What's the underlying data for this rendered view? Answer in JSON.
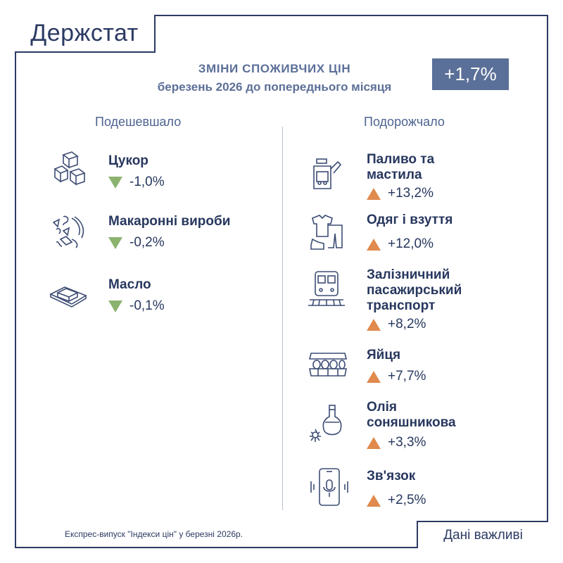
{
  "header": {
    "logo": "Держстат",
    "title": "ЗМІНИ СПОЖИВЧИХ ЦІН",
    "subtitle": "березень 2026 до попереднього місяця",
    "total_change": "+1,7%"
  },
  "cheaper": {
    "heading": "Подешевшало",
    "items": [
      {
        "name": "Цукор",
        "change": "-1,0%",
        "icon": "sugar-cubes-icon"
      },
      {
        "name": "Макаронні вироби",
        "change": "-0,2%",
        "icon": "pasta-icon"
      },
      {
        "name": "Масло",
        "change": "-0,1%",
        "icon": "butter-icon"
      }
    ]
  },
  "pricier": {
    "heading": "Подорожчало",
    "items": [
      {
        "name_lines": [
          "Паливо та",
          "мастила"
        ],
        "change": "+13,2%",
        "icon": "fuel-canister-icon"
      },
      {
        "name_lines": [
          "Одяг і взуття"
        ],
        "change": "+12,0%",
        "icon": "clothes-icon"
      },
      {
        "name_lines": [
          "Залізничний",
          "пасажирський",
          "транспорт"
        ],
        "change": "+8,2%",
        "icon": "train-icon"
      },
      {
        "name_lines": [
          "Яйця"
        ],
        "change": "+7,7%",
        "icon": "egg-tray-icon"
      },
      {
        "name_lines": [
          "Олія",
          "соняшникова"
        ],
        "change": "+3,3%",
        "icon": "oil-bottle-icon"
      },
      {
        "name_lines": [
          "Зв'язок"
        ],
        "change": "+2,5%",
        "icon": "phone-icon"
      }
    ]
  },
  "footer": {
    "note": "Експрес-випуск \"Індекси цін\" у березні 2026р.",
    "slogan": "Дані важливі"
  },
  "colors": {
    "navy": "#27375e",
    "accent": "#5b7098",
    "down": "#8bb36e",
    "up": "#e08a4d"
  }
}
